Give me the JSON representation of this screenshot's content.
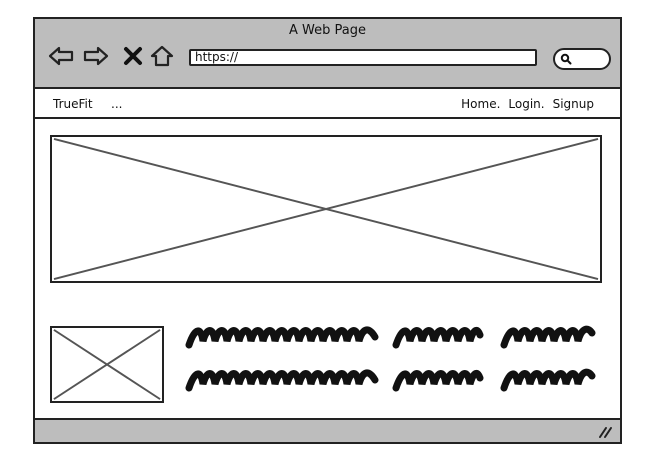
{
  "window": {
    "title": "A Web Page"
  },
  "toolbar": {
    "url": "https://",
    "icons": [
      "back-arrow-icon",
      "forward-arrow-icon",
      "close-x-icon",
      "home-icon",
      "search-icon"
    ]
  },
  "navbar": {
    "brand": "TrueFit",
    "ellipsis": "...",
    "links": [
      "Home.",
      "Login.",
      "Signup"
    ]
  },
  "content": {
    "hero_image": "image-placeholder",
    "thumbnail_image": "image-placeholder",
    "text_lines": 2
  },
  "colors": {
    "chrome": "#bdbdbd",
    "stroke": "#222222",
    "placeholder_stroke": "#555555"
  }
}
